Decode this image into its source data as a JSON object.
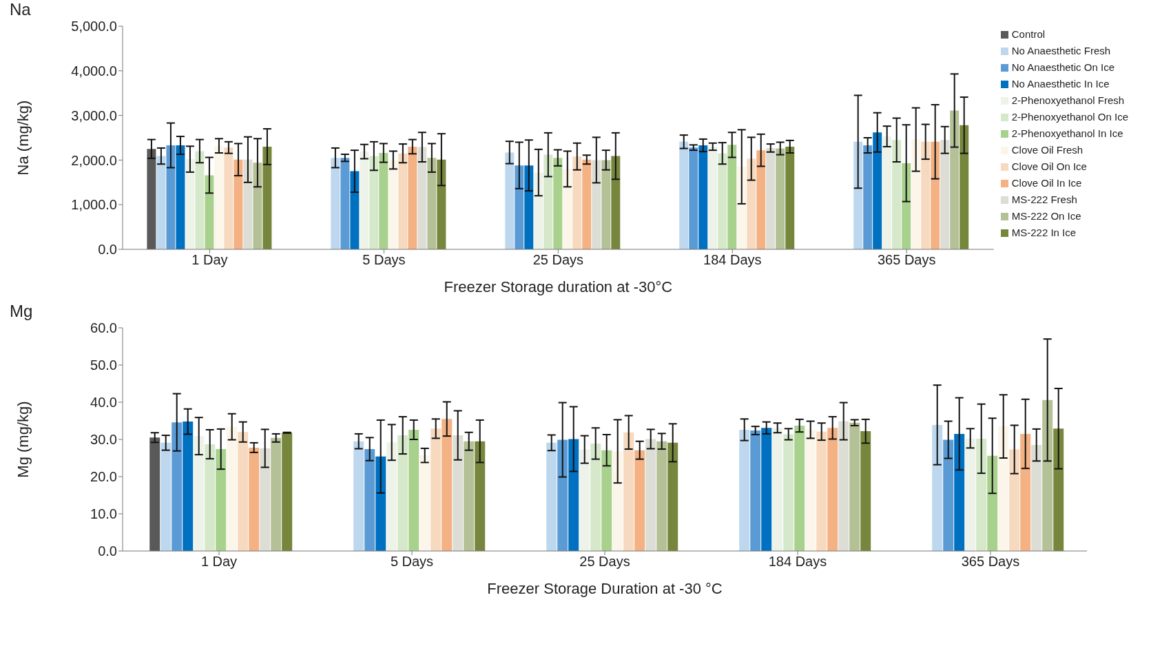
{
  "chart_data": [
    {
      "type": "bar",
      "title": "Na",
      "xlabel": "Freezer Storage duration at -30°C",
      "ylabel": "Na (mg/kg)",
      "categories": [
        "1 Day",
        "5 Days",
        "25 Days",
        "184 Days",
        "365 Days"
      ],
      "ylim": [
        0,
        5000
      ],
      "yticks": [
        {
          "value": 0,
          "label": "0.0"
        },
        {
          "value": 1000,
          "label": "1,000.0"
        },
        {
          "value": 2000,
          "label": "2,000.0"
        },
        {
          "value": 3000,
          "label": "3,000.0"
        },
        {
          "value": 4000,
          "label": "4,000.0"
        },
        {
          "value": 5000,
          "label": "5,000.0"
        }
      ],
      "legend": "right",
      "series": [
        {
          "name": "Control",
          "color": "#595959",
          "values": [
            2250,
            null,
            null,
            null,
            null
          ],
          "errors": [
            210,
            null,
            null,
            null,
            null
          ]
        },
        {
          "name": "No Anaesthetic Fresh",
          "color": "#bdd7ee",
          "values": [
            2090,
            2050,
            2170,
            2410,
            2410
          ],
          "errors": [
            180,
            220,
            250,
            150,
            1040
          ]
        },
        {
          "name": "No Anaesthetic On Ice",
          "color": "#5b9bd5",
          "values": [
            2330,
            2050,
            1880,
            2280,
            2330
          ],
          "errors": [
            500,
            80,
            520,
            60,
            170
          ]
        },
        {
          "name": "No Anaesthetic In Ice",
          "color": "#0070c0",
          "values": [
            2330,
            1750,
            1880,
            2330,
            2620
          ],
          "errors": [
            200,
            470,
            570,
            140,
            440
          ]
        },
        {
          "name": "2-Phenoxyethanol Fresh",
          "color": "#eef3ea",
          "values": [
            2020,
            2190,
            1720,
            2300,
            2530
          ],
          "errors": [
            290,
            160,
            520,
            80,
            230
          ]
        },
        {
          "name": "2-Phenoxyethanol On Ice",
          "color": "#d5e8c9",
          "values": [
            2200,
            2090,
            2120,
            2150,
            2450
          ],
          "errors": [
            260,
            320,
            490,
            240,
            490
          ]
        },
        {
          "name": "2-Phenoxyethanol In Ice",
          "color": "#a9d18e",
          "values": [
            1660,
            2160,
            2050,
            2340,
            1930
          ],
          "errors": [
            400,
            210,
            180,
            280,
            860
          ]
        },
        {
          "name": "Clove Oil Fresh",
          "color": "#fbf5ea",
          "values": [
            2320,
            2000,
            1800,
            1850,
            2460
          ],
          "errors": [
            160,
            200,
            400,
            830,
            710
          ]
        },
        {
          "name": "Clove Oil On Ice",
          "color": "#f6d9be",
          "values": [
            2280,
            2150,
            2080,
            2030,
            2410
          ],
          "errors": [
            130,
            210,
            300,
            480,
            390
          ]
        },
        {
          "name": "Clove Oil In Ice",
          "color": "#f4b183",
          "values": [
            2010,
            2300,
            2010,
            2220,
            2410
          ],
          "errors": [
            360,
            160,
            100,
            360,
            830
          ]
        },
        {
          "name": "MS-222 Fresh",
          "color": "#dcddd5",
          "values": [
            2010,
            2290,
            2000,
            2270,
            2450
          ],
          "errors": [
            510,
            330,
            510,
            90,
            300
          ]
        },
        {
          "name": "MS-222 On Ice",
          "color": "#b4c096",
          "values": [
            1940,
            2050,
            2000,
            2260,
            3110
          ],
          "errors": [
            540,
            320,
            220,
            140,
            820
          ]
        },
        {
          "name": "MS-222 In Ice",
          "color": "#76873d",
          "values": [
            2300,
            2010,
            2090,
            2300,
            2780
          ],
          "errors": [
            400,
            580,
            520,
            140,
            630
          ]
        }
      ]
    },
    {
      "type": "bar",
      "title": "Mg",
      "xlabel": "Freezer Storage Duration at -30 °C",
      "ylabel": "Mg (mg/kg)",
      "categories": [
        "1 Day",
        "5 Days",
        "25 Days",
        "184 Days",
        "365 Days"
      ],
      "ylim": [
        0,
        60
      ],
      "yticks": [
        {
          "value": 0,
          "label": "0.0"
        },
        {
          "value": 10,
          "label": "10.0"
        },
        {
          "value": 20,
          "label": "20.0"
        },
        {
          "value": 30,
          "label": "30.0"
        },
        {
          "value": 40,
          "label": "40.0"
        },
        {
          "value": 50,
          "label": "50.0"
        },
        {
          "value": 60,
          "label": "60.0"
        }
      ],
      "series": [
        {
          "color": "#595959",
          "values": [
            30.5,
            null,
            null,
            null,
            null
          ],
          "errors": [
            1.3,
            null,
            null,
            null,
            null
          ]
        },
        {
          "color": "#bdd7ee",
          "values": [
            29.1,
            29.5,
            29.1,
            32.6,
            33.9
          ],
          "errors": [
            2.0,
            2.0,
            2.1,
            2.9,
            10.7
          ]
        },
        {
          "color": "#5b9bd5",
          "values": [
            34.6,
            27.4,
            29.9,
            32.4,
            29.9
          ],
          "errors": [
            7.7,
            3.1,
            10.0,
            1.1,
            5.0
          ]
        },
        {
          "color": "#0070c0",
          "values": [
            34.8,
            25.4,
            30.1,
            33.1,
            31.5
          ],
          "errors": [
            3.4,
            9.8,
            8.7,
            1.6,
            9.7
          ]
        },
        {
          "color": "#eef3ea",
          "values": [
            30.9,
            29.2,
            27.3,
            33.1,
            30.3
          ],
          "errors": [
            5.0,
            4.8,
            3.7,
            1.3,
            2.6
          ]
        },
        {
          "color": "#d5e8c9",
          "values": [
            28.7,
            31.1,
            28.9,
            31.4,
            30.2
          ],
          "errors": [
            3.9,
            5.0,
            4.2,
            1.5,
            9.3
          ]
        },
        {
          "color": "#a9d18e",
          "values": [
            27.4,
            32.6,
            27.1,
            33.7,
            25.6
          ],
          "errors": [
            5.4,
            2.6,
            4.2,
            1.7,
            10.1
          ]
        },
        {
          "color": "#fbf5ea",
          "values": [
            33.4,
            25.7,
            26.8,
            32.6,
            33.5
          ],
          "errors": [
            3.5,
            1.9,
            8.5,
            2.3,
            8.5
          ]
        },
        {
          "color": "#f6d9be",
          "values": [
            32.0,
            32.9,
            31.9,
            32.1,
            27.3
          ],
          "errors": [
            2.7,
            2.6,
            4.5,
            2.3,
            6.5
          ]
        },
        {
          "color": "#f4b183",
          "values": [
            27.8,
            35.5,
            27.1,
            33.1,
            31.5
          ],
          "errors": [
            1.3,
            4.6,
            2.4,
            3.0,
            9.3
          ]
        },
        {
          "color": "#dcddd5",
          "values": [
            27.6,
            31.1,
            30.1,
            34.9,
            28.5
          ],
          "errors": [
            5.1,
            6.6,
            2.6,
            5.0,
            4.3
          ]
        },
        {
          "color": "#b4c096",
          "values": [
            30.4,
            29.5,
            29.5,
            34.5,
            40.6
          ],
          "errors": [
            1.1,
            2.4,
            2.1,
            0.8,
            16.4
          ]
        },
        {
          "color": "#76873d",
          "values": [
            31.8,
            29.5,
            29.1,
            32.2,
            32.9
          ],
          "errors": [
            0.1,
            5.7,
            5.1,
            3.2,
            10.8
          ]
        }
      ]
    }
  ]
}
